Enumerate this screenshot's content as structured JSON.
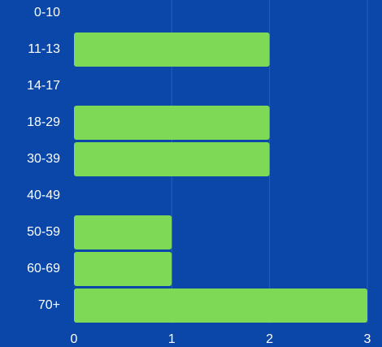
{
  "chart_data": {
    "type": "bar",
    "orientation": "horizontal",
    "categories": [
      "0-10",
      "11-13",
      "14-17",
      "18-29",
      "30-39",
      "40-49",
      "50-59",
      "60-69",
      "70+"
    ],
    "values": [
      0,
      2,
      0,
      2,
      2,
      0,
      1,
      1,
      3
    ],
    "title": "",
    "xlabel": "",
    "ylabel": "",
    "xlim": [
      0,
      3
    ],
    "x_ticks": [
      "0",
      "1",
      "2",
      "3"
    ],
    "grid": "vertical",
    "legend": "none",
    "colors": {
      "background": "#0a47a8",
      "bar": "#7ed957",
      "grid": "#2a5fb5",
      "text": "#ffffff"
    }
  }
}
